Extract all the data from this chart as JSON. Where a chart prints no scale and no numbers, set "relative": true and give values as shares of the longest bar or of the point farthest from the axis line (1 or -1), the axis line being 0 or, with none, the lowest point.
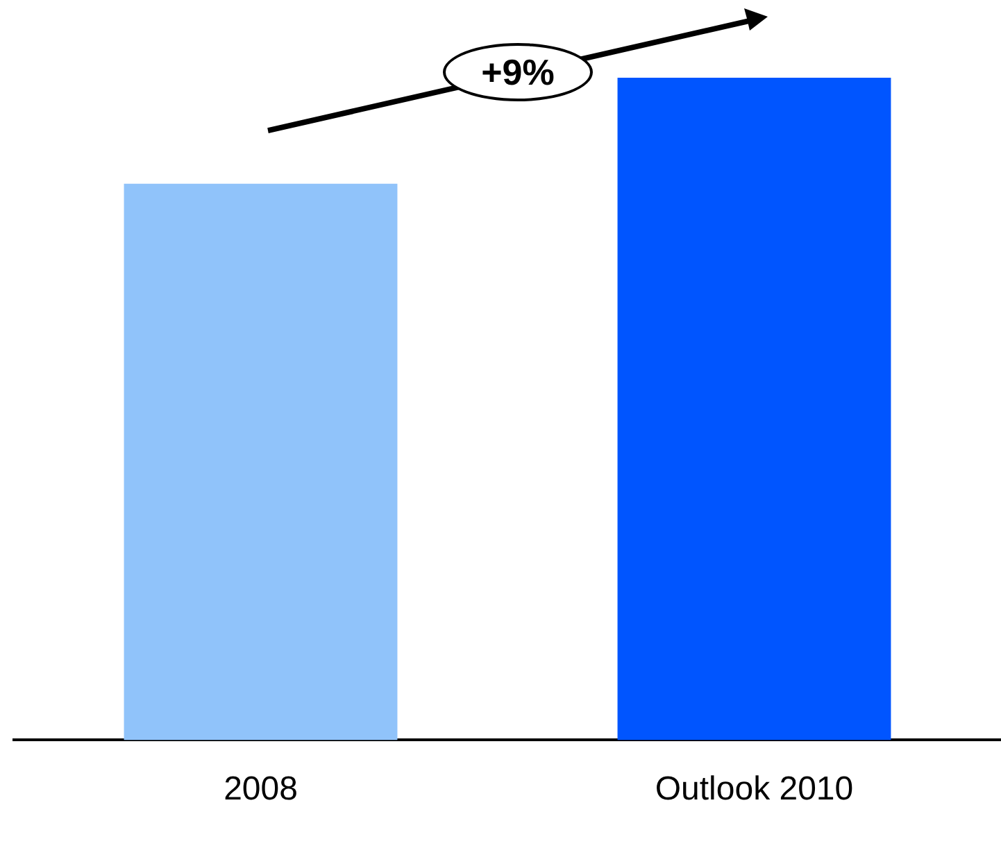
{
  "chart_data": {
    "type": "bar",
    "relative": true,
    "categories": [
      "2008",
      "Outlook 2010"
    ],
    "values": [
      0.84,
      1
    ],
    "colors": [
      "#90c3fa",
      "#0055ff"
    ],
    "annotations": [
      "+9%"
    ],
    "grid": false,
    "legend": false
  }
}
